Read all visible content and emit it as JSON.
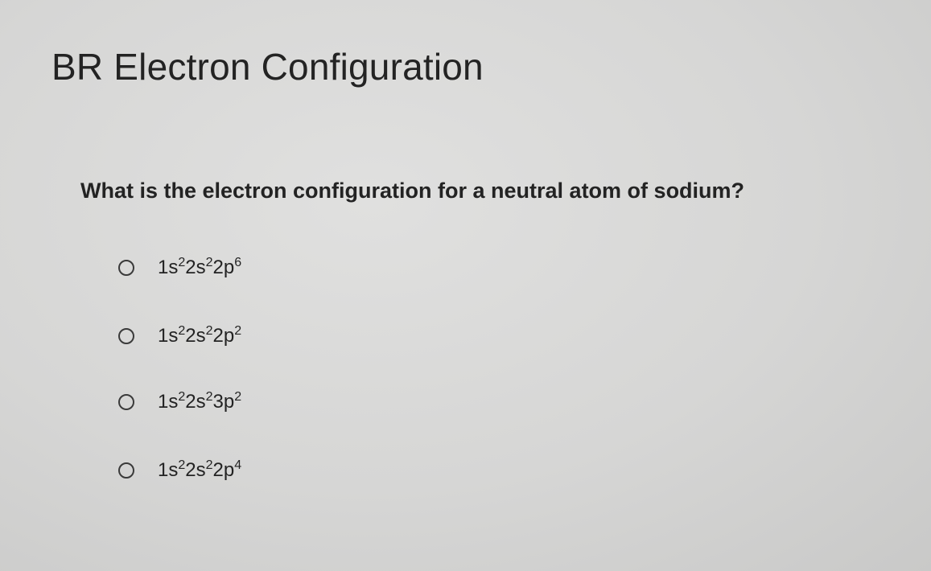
{
  "header": {
    "title": "BR Electron Configuration"
  },
  "question": {
    "text": "What is the electron configuration for a neutral atom of sodium?"
  },
  "options": [
    {
      "parts": [
        {
          "base": "1s",
          "sup": "2"
        },
        {
          "base": "2s",
          "sup": "2"
        },
        {
          "base": "2p",
          "sup": "6"
        }
      ]
    },
    {
      "parts": [
        {
          "base": "1s",
          "sup": "2"
        },
        {
          "base": "2s",
          "sup": "2"
        },
        {
          "base": "2p",
          "sup": "2"
        }
      ]
    },
    {
      "parts": [
        {
          "base": "1s",
          "sup": "2"
        },
        {
          "base": "2s",
          "sup": "2"
        },
        {
          "base": "3p",
          "sup": "2"
        }
      ]
    },
    {
      "parts": [
        {
          "base": "1s",
          "sup": "2"
        },
        {
          "base": "2s",
          "sup": "2"
        },
        {
          "base": "2p",
          "sup": "4"
        }
      ]
    }
  ]
}
